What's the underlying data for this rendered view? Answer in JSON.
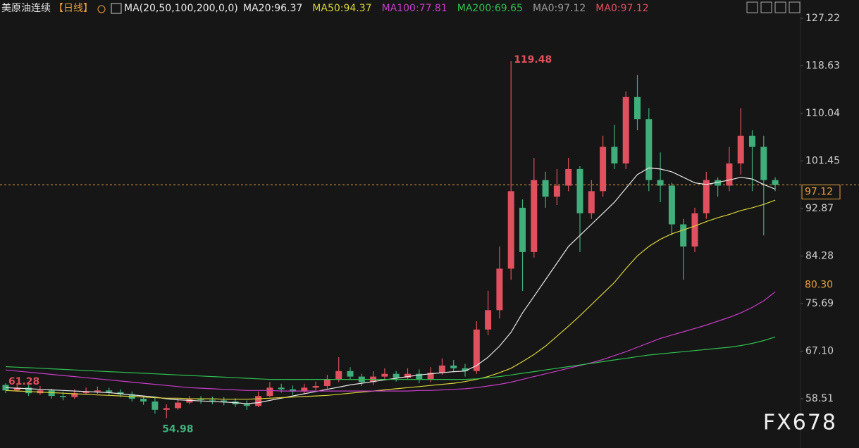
{
  "chart_data": {
    "type": "candlestick",
    "header": {
      "title": "美原油连续",
      "period": "【日线】",
      "indicator": "MA(20,50,100,200,0,0)"
    },
    "legend": [
      {
        "label": "MA20:96.37",
        "color": "#e8e8e8"
      },
      {
        "label": "MA50:94.37",
        "color": "#d8d23a"
      },
      {
        "label": "MA100:77.81",
        "color": "#c83cc8"
      },
      {
        "label": "MA200:69.65",
        "color": "#2fbf4f"
      },
      {
        "label": "MA0:97.12",
        "color": "#9a9a9a"
      },
      {
        "label": "MA0:97.12",
        "color": "#e0505e"
      }
    ],
    "up_color": "#e0505e",
    "down_color": "#3fae7a",
    "open": [
      61,
      60,
      60.5,
      59.5,
      60,
      59,
      58.8,
      59.5,
      59.8,
      60,
      59.7,
      59.3,
      58.5,
      58,
      56.5,
      56.8,
      57.8,
      58.4,
      58.3,
      58.2,
      58,
      57.5,
      57.2,
      59,
      60.5,
      60.2,
      59.8,
      60.5,
      60.8,
      62,
      63.5,
      62.5,
      61.5,
      62.5,
      63,
      62.3,
      63,
      62,
      63.2,
      64.5,
      64,
      63.5,
      71,
      74.5,
      82,
      93,
      85,
      98,
      95,
      97,
      100,
      92,
      96,
      104,
      101,
      113,
      109,
      98,
      97,
      90,
      86,
      92,
      98,
      97,
      101,
      106,
      104,
      98
    ],
    "high": [
      61.28,
      61.2,
      61,
      60.8,
      60.3,
      59.8,
      60.2,
      60.5,
      60.7,
      60.5,
      60.2,
      59.8,
      59,
      58.7,
      57.5,
      58.5,
      59,
      59,
      58.9,
      58.8,
      58.6,
      58.2,
      59.8,
      61.5,
      61.2,
      60.9,
      61.2,
      61.6,
      62.8,
      66,
      64.2,
      63,
      63.5,
      64,
      63.5,
      64,
      63.8,
      64.2,
      65.8,
      65.5,
      64.8,
      72.5,
      78,
      86,
      119.48,
      94.5,
      102,
      99.5,
      100,
      102,
      100.5,
      98,
      106,
      108,
      114,
      117,
      111,
      103,
      97.5,
      91,
      93,
      99.5,
      98.5,
      104,
      111,
      107,
      106,
      98.5
    ],
    "low": [
      59.5,
      59.8,
      59,
      59.2,
      58.5,
      58.2,
      58.5,
      59.2,
      59.4,
      59.2,
      58.8,
      58,
      57.4,
      55.8,
      54.98,
      56.5,
      57.5,
      57.6,
      57.5,
      57.3,
      57,
      56.5,
      57,
      58.8,
      59.6,
      59.2,
      59.3,
      60,
      60.3,
      61.5,
      62,
      60.8,
      61,
      62,
      61.6,
      62,
      61.3,
      61.5,
      62.8,
      63.3,
      62.5,
      63,
      70,
      73,
      80,
      78,
      84,
      93,
      93.5,
      96,
      85,
      91,
      95,
      100,
      100,
      107,
      96,
      94,
      88,
      80,
      85,
      91,
      95,
      96,
      99,
      96,
      88,
      96
    ],
    "close": [
      60,
      60.5,
      59.5,
      60,
      59,
      58.8,
      59.5,
      59.8,
      60,
      59.7,
      59.3,
      58.5,
      58,
      56.5,
      56.8,
      57.8,
      58.4,
      58.3,
      58.2,
      58,
      57.5,
      57.2,
      59,
      60.5,
      60.2,
      59.8,
      60.5,
      60.8,
      62,
      63.5,
      62.5,
      61.5,
      62.5,
      63,
      62.3,
      63,
      62,
      63.2,
      64.5,
      64,
      63.5,
      71,
      74.5,
      82,
      96,
      85,
      98,
      95,
      97,
      100,
      92,
      96,
      104,
      101,
      113,
      109,
      98,
      97,
      90,
      86,
      92,
      98,
      97,
      101,
      106,
      104,
      98,
      97.12
    ],
    "series": [
      {
        "name": "MA20",
        "color": "#e8e8e8",
        "values": [
          60.5,
          60.4,
          60.3,
          60.2,
          60.1,
          60,
          59.9,
          59.8,
          59.7,
          59.6,
          59.4,
          59.2,
          59,
          58.8,
          58.5,
          58.3,
          58.2,
          58.1,
          58,
          57.9,
          57.8,
          57.6,
          57.8,
          58.2,
          58.6,
          59,
          59.4,
          59.8,
          60.2,
          60.6,
          61,
          61.3,
          61.6,
          61.9,
          62.2,
          62.5,
          62.8,
          63,
          63.2,
          63.4,
          63.5,
          64.5,
          66,
          68,
          70.5,
          74,
          77,
          80,
          83,
          86,
          88,
          90,
          92,
          94,
          96.5,
          99,
          100.2,
          100,
          99.5,
          98.5,
          97.5,
          97.2,
          97.6,
          98,
          98.5,
          98.2,
          97.2,
          96.37
        ]
      },
      {
        "name": "MA50",
        "color": "#d8d23a",
        "values": [
          60,
          59.9,
          59.8,
          59.7,
          59.6,
          59.5,
          59.4,
          59.3,
          59.2,
          59.1,
          59,
          58.9,
          58.8,
          58.7,
          58.6,
          58.6,
          58.5,
          58.5,
          58.5,
          58.4,
          58.4,
          58.4,
          58.5,
          58.6,
          58.7,
          58.8,
          58.9,
          59,
          59.1,
          59.3,
          59.5,
          59.7,
          59.9,
          60.1,
          60.3,
          60.5,
          60.7,
          60.9,
          61.1,
          61.3,
          61.6,
          62,
          62.5,
          63.2,
          64,
          65.2,
          66.5,
          68,
          69.8,
          71.6,
          73.5,
          75.5,
          77.5,
          79.5,
          82,
          84.3,
          86,
          87.3,
          88.3,
          89,
          89.7,
          90.5,
          91.2,
          91.8,
          92.5,
          93,
          93.6,
          94.37
        ]
      },
      {
        "name": "MA100",
        "color": "#c83cc8",
        "values": [
          63.7,
          63.5,
          63.3,
          63.1,
          62.9,
          62.7,
          62.5,
          62.3,
          62.1,
          61.9,
          61.7,
          61.5,
          61.3,
          61.1,
          60.9,
          60.7,
          60.5,
          60.4,
          60.3,
          60.2,
          60.1,
          60,
          60,
          60,
          59.9,
          59.9,
          59.9,
          59.9,
          59.9,
          59.9,
          59.9,
          59.9,
          59.9,
          59.9,
          59.9,
          59.9,
          60,
          60,
          60.1,
          60.2,
          60.3,
          60.5,
          60.8,
          61.1,
          61.5,
          62,
          62.5,
          63,
          63.5,
          64,
          64.5,
          65,
          65.6,
          66.3,
          67,
          67.8,
          68.6,
          69.4,
          70,
          70.6,
          71.2,
          71.8,
          72.5,
          73.2,
          74,
          75,
          76.2,
          77.81
        ]
      },
      {
        "name": "MA200",
        "color": "#2fbf4f",
        "values": [
          64.3,
          64.2,
          64.1,
          64,
          63.9,
          63.8,
          63.7,
          63.6,
          63.5,
          63.4,
          63.3,
          63.2,
          63.1,
          63,
          62.9,
          62.8,
          62.7,
          62.6,
          62.5,
          62.4,
          62.3,
          62.2,
          62.1,
          62,
          62,
          62,
          62,
          62,
          62,
          62,
          62,
          62,
          62,
          62,
          62,
          62,
          62,
          62,
          62,
          62,
          62,
          62.1,
          62.3,
          62.5,
          62.8,
          63.1,
          63.4,
          63.7,
          64,
          64.3,
          64.6,
          64.9,
          65.2,
          65.5,
          65.8,
          66.1,
          66.4,
          66.6,
          66.8,
          67,
          67.2,
          67.4,
          67.6,
          67.8,
          68.1,
          68.5,
          69,
          69.65
        ]
      }
    ],
    "marked_prices": [
      119.48,
      61.28,
      54.98
    ],
    "last_price": 97.12,
    "price_tags": [
      {
        "value": 97.12,
        "label": "97.12",
        "color": "#e8a040"
      },
      {
        "value": 80.3,
        "label": "80.30",
        "color": "#e8a040"
      }
    ],
    "ylim": [
      49.6,
      130.53
    ],
    "yticks": [
      127.22,
      118.63,
      110.04,
      101.45,
      92.87,
      84.28,
      75.69,
      {
        "value": 67.1,
        "label": "67.10"
      },
      58.51
    ],
    "watermark": "FX678"
  }
}
